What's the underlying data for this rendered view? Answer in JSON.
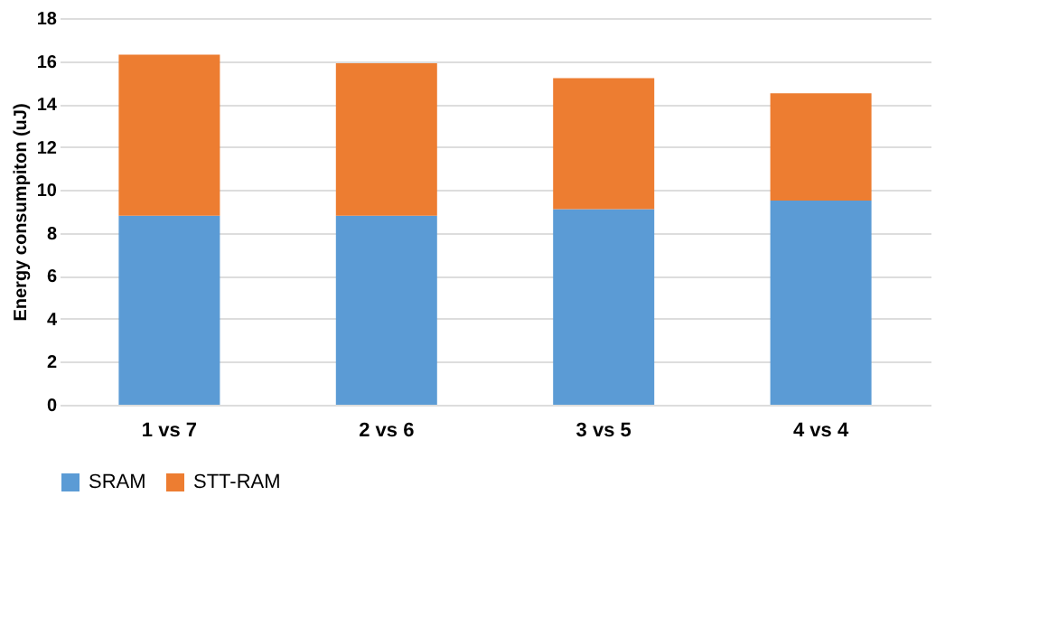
{
  "chart_data": {
    "type": "bar",
    "stacked": true,
    "ylabel": "Energy consumpiton (uJ)",
    "categories": [
      "1 vs 7",
      "2 vs 6",
      "3 vs 5",
      "4 vs 4"
    ],
    "series": [
      {
        "name": "SRAM",
        "color": "#5b9bd5",
        "values": [
          8.8,
          8.8,
          9.1,
          9.5
        ]
      },
      {
        "name": "STT-RAM",
        "color": "#ed7d31",
        "values": [
          7.5,
          7.1,
          6.1,
          5.0
        ]
      }
    ],
    "ylim": [
      0,
      18
    ],
    "yticks": [
      0,
      2,
      4,
      6,
      8,
      10,
      12,
      14,
      16,
      18
    ],
    "grid": "y",
    "legend": "bottom"
  }
}
